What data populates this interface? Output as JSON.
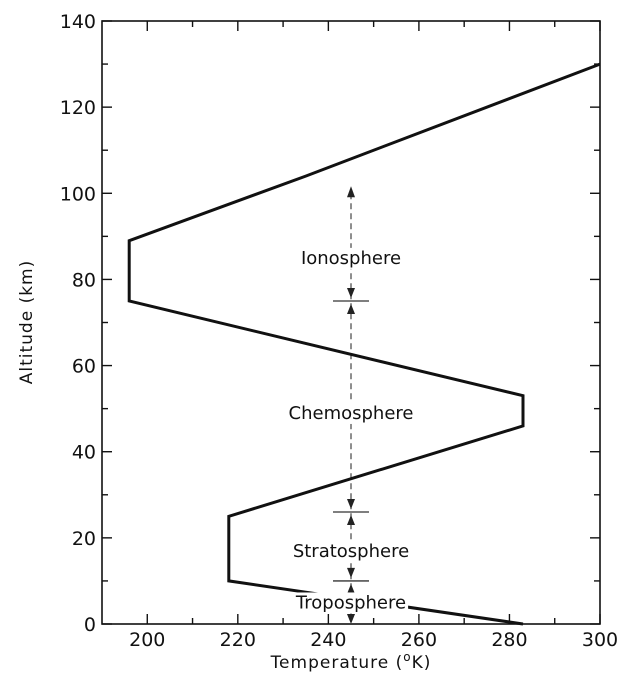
{
  "chart_data": {
    "type": "line",
    "title": "",
    "xlabel": "Temperature (°K)",
    "xlabel_prefix": "Temperature (",
    "xlabel_superscript": "o",
    "xlabel_suffix": "K)",
    "ylabel": "Altitude (km)",
    "xlim": [
      190,
      300
    ],
    "ylim": [
      0,
      140
    ],
    "x_ticks": [
      200,
      220,
      240,
      260,
      280,
      300
    ],
    "y_ticks": [
      0,
      20,
      40,
      60,
      80,
      100,
      120,
      140
    ],
    "grid": false,
    "series": [
      {
        "x": [
          283,
          218,
          218,
          283,
          283,
          196,
          196,
          235,
          300
        ],
        "y": [
          0,
          10,
          25,
          46,
          53,
          75,
          89,
          104,
          130
        ]
      }
    ],
    "regions": [
      {
        "label": "Ionosphere",
        "x": 245,
        "y": 85
      },
      {
        "label": "Chemosphere",
        "x": 245,
        "y": 49
      },
      {
        "label": "Stratosphere",
        "x": 245,
        "y": 17
      },
      {
        "label": "Troposphere",
        "x": 245,
        "y": 5
      }
    ],
    "boundaries": {
      "x": 245,
      "top": 100,
      "bottom": 0,
      "marks": [
        75,
        26,
        10
      ]
    }
  }
}
